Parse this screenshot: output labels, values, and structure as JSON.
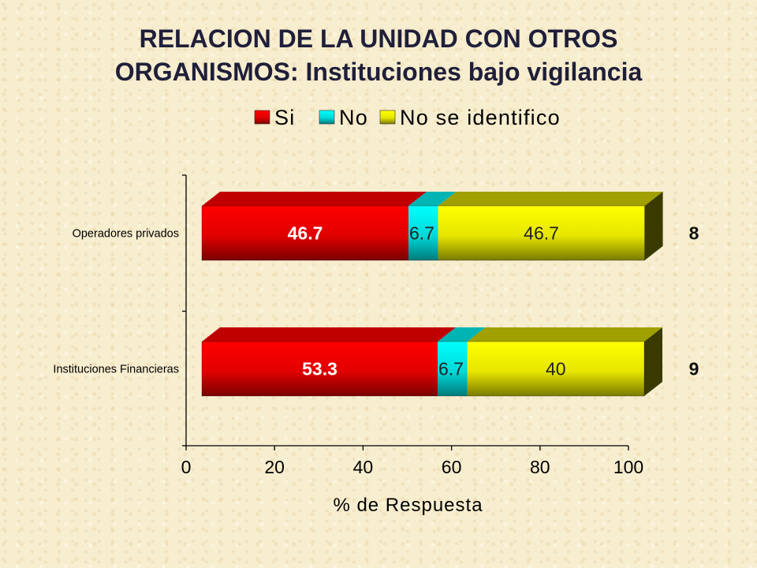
{
  "slide": {
    "title_line1": "RELACION DE LA UNIDAD CON OTROS",
    "title_line2": "ORGANISMOS: Instituciones bajo vigilancia"
  },
  "chart_data": {
    "type": "bar",
    "orientation": "horizontal",
    "stacked": true,
    "style": "3d",
    "categories": [
      "Operadores privados",
      "Instituciones Financieras"
    ],
    "series": [
      {
        "name": "Si",
        "values": [
          46.7,
          53.3
        ],
        "color": "#ff0000"
      },
      {
        "name": "No",
        "values": [
          6.7,
          6.7
        ],
        "color": "#00ffff"
      },
      {
        "name": "No se identifico",
        "values": [
          46.7,
          40
        ],
        "color": "#ffff00"
      }
    ],
    "data_labels": [
      [
        "46.7",
        "6.7",
        "46.7"
      ],
      [
        "53.3",
        "6.7",
        "40"
      ]
    ],
    "side_labels": [
      "8",
      "9"
    ],
    "xlabel": "% de Respuesta",
    "ylabel": "",
    "xlim": [
      0,
      100
    ],
    "xticks": [
      "0",
      "20",
      "40",
      "60",
      "80",
      "100"
    ],
    "legend_position": "top",
    "grid": false
  }
}
